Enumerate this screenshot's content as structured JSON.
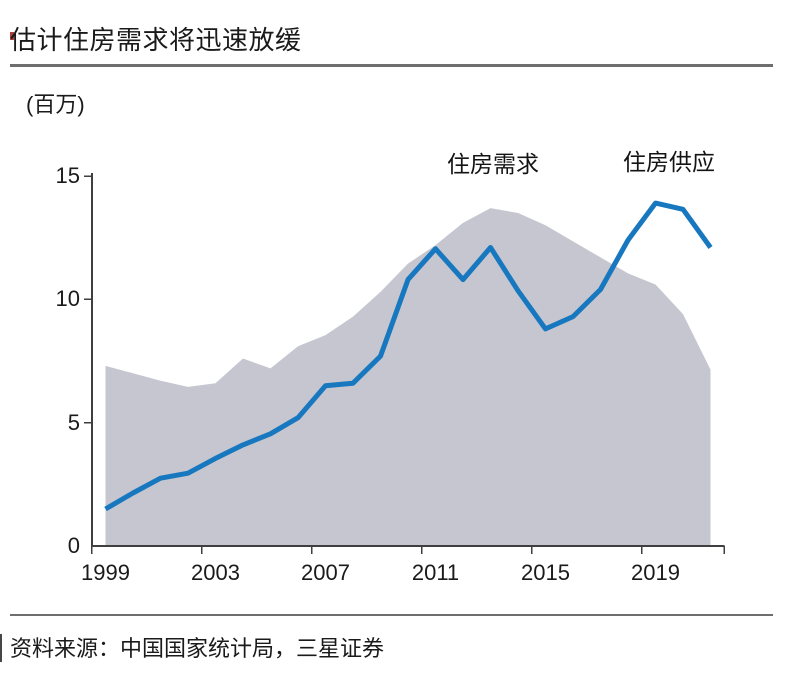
{
  "header": {
    "title": "估计住房需求将迅速放缓",
    "unit_label": "(百万)"
  },
  "chart_data": {
    "type": "area",
    "x": [
      1999,
      2000,
      2001,
      2002,
      2003,
      2004,
      2005,
      2006,
      2007,
      2008,
      2009,
      2010,
      2011,
      2012,
      2013,
      2014,
      2015,
      2016,
      2017,
      2018,
      2019,
      2020,
      2021
    ],
    "series": [
      {
        "name": "住房需求",
        "type": "area",
        "color": "#c5c6d0",
        "values": [
          7.3,
          7.0,
          6.7,
          6.45,
          6.6,
          7.6,
          7.2,
          8.1,
          8.55,
          9.3,
          10.3,
          11.45,
          12.2,
          13.1,
          13.7,
          13.5,
          13.0,
          12.35,
          11.7,
          11.05,
          10.6,
          9.4,
          7.15
        ]
      },
      {
        "name": "住房供应",
        "type": "line",
        "color": "#1878bf",
        "values": [
          1.5,
          2.15,
          2.75,
          2.95,
          3.55,
          4.1,
          4.55,
          5.2,
          6.5,
          6.6,
          7.7,
          10.8,
          12.05,
          10.8,
          12.1,
          10.35,
          8.8,
          9.3,
          10.4,
          12.4,
          13.9,
          13.65,
          12.1
        ]
      }
    ],
    "title": "估计住房需求将迅速放缓",
    "xlabel": "",
    "ylabel": "(百万)",
    "ylim": [
      0,
      15
    ],
    "yticks": [
      0,
      5,
      10,
      15
    ],
    "xticks": [
      1999,
      2003,
      2007,
      2011,
      2015,
      2019
    ],
    "grid": false,
    "legend_position": "annotations-above-series"
  },
  "footer": {
    "source": "资料来源：中国国家统计局，三星证券"
  },
  "colors": {
    "line_blue": "#1878bf",
    "area_gray": "#c5c6d0",
    "axis": "#3f3f3f",
    "rule_gray": "#6e6e6e",
    "red_marker": "#b04040",
    "text": "#1a1a1a"
  }
}
